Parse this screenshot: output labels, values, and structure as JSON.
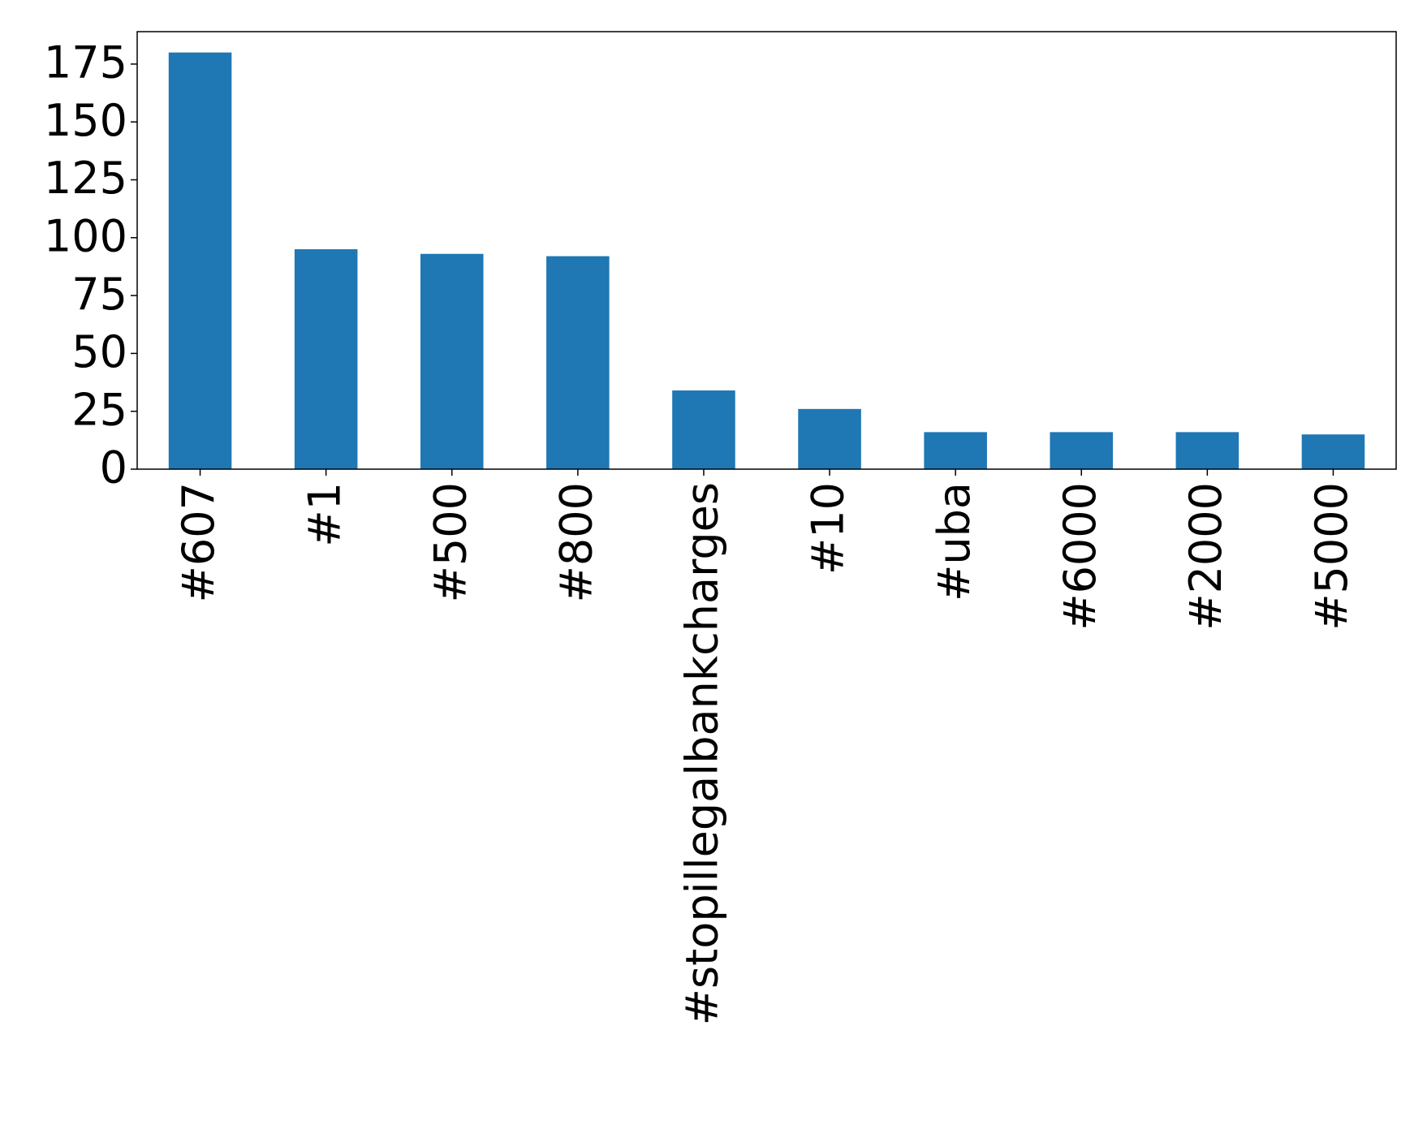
{
  "chart_data": {
    "type": "bar",
    "categories": [
      "#607",
      "#1",
      "#500",
      "#800",
      "#stopillegalbankcharges",
      "#10",
      "#uba",
      "#6000",
      "#2000",
      "#5000"
    ],
    "values": [
      180,
      95,
      93,
      92,
      34,
      26,
      16,
      16,
      16,
      15
    ],
    "color": "#1f77b4",
    "ylim": [
      0,
      189
    ],
    "yticks": [
      0,
      25,
      50,
      75,
      100,
      125,
      150,
      175
    ],
    "grid": false
  }
}
